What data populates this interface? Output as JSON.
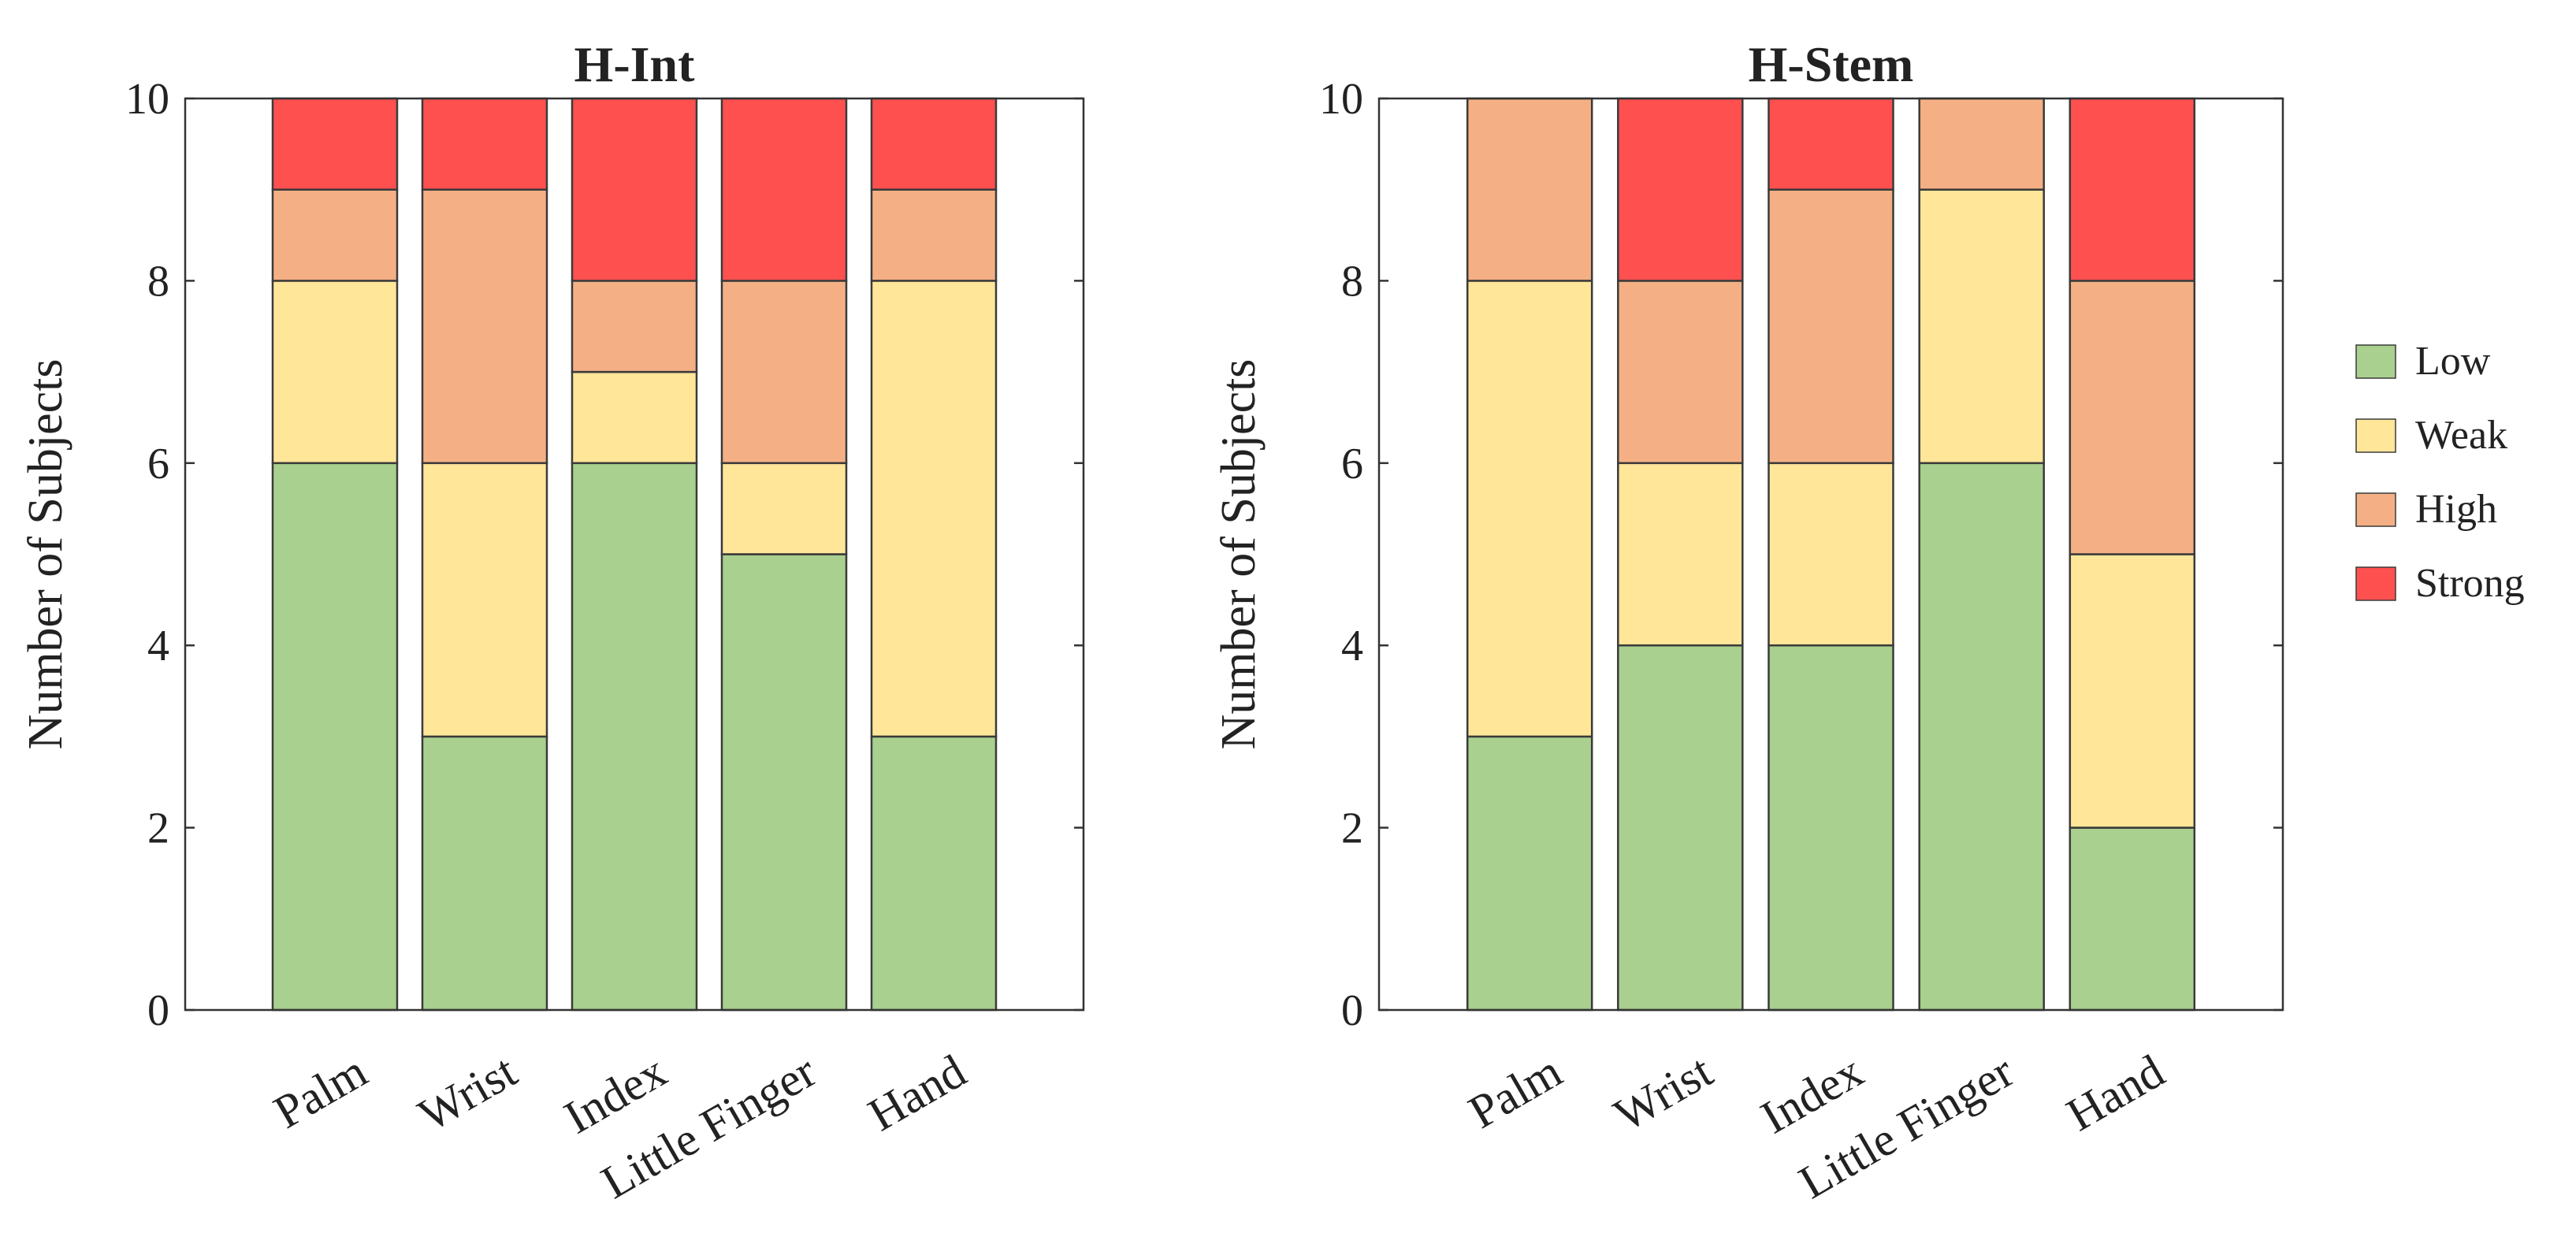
{
  "colors": {
    "Low": "#a9d08e",
    "Weak": "#ffe699",
    "High": "#f4b084",
    "Strong": "#ff5050",
    "axis": "#333333",
    "bar_edge": "#3a3a3a"
  },
  "legend": {
    "placement": "right",
    "items": [
      "Low",
      "Weak",
      "High",
      "Strong"
    ]
  },
  "chart_data": [
    {
      "type": "bar",
      "stacked": true,
      "title": "H-Int",
      "xlabel": "",
      "ylabel": "Number of Subjects",
      "ylim": [
        0,
        10
      ],
      "yticks": [
        "0",
        "2",
        "4",
        "6",
        "8",
        "10"
      ],
      "categories": [
        "Palm",
        "Wrist",
        "Index",
        "Little Finger",
        "Hand"
      ],
      "series": [
        {
          "name": "Low",
          "values": [
            6,
            3,
            6,
            5,
            3
          ]
        },
        {
          "name": "Weak",
          "values": [
            2,
            3,
            1,
            1,
            5
          ]
        },
        {
          "name": "High",
          "values": [
            1,
            3,
            1,
            2,
            1
          ]
        },
        {
          "name": "Strong",
          "values": [
            1,
            1,
            2,
            2,
            1
          ]
        }
      ]
    },
    {
      "type": "bar",
      "stacked": true,
      "title": "H-Stem",
      "xlabel": "",
      "ylabel": "Number of Subjects",
      "ylim": [
        0,
        10
      ],
      "yticks": [
        "0",
        "2",
        "4",
        "6",
        "8",
        "10"
      ],
      "categories": [
        "Palm",
        "Wrist",
        "Index",
        "Little Finger",
        "Hand"
      ],
      "series": [
        {
          "name": "Low",
          "values": [
            3,
            4,
            4,
            6,
            2
          ]
        },
        {
          "name": "Weak",
          "values": [
            5,
            2,
            2,
            3,
            3
          ]
        },
        {
          "name": "High",
          "values": [
            2,
            2,
            3,
            1,
            3
          ]
        },
        {
          "name": "Strong",
          "values": [
            0,
            2,
            1,
            0,
            2
          ]
        }
      ]
    }
  ]
}
